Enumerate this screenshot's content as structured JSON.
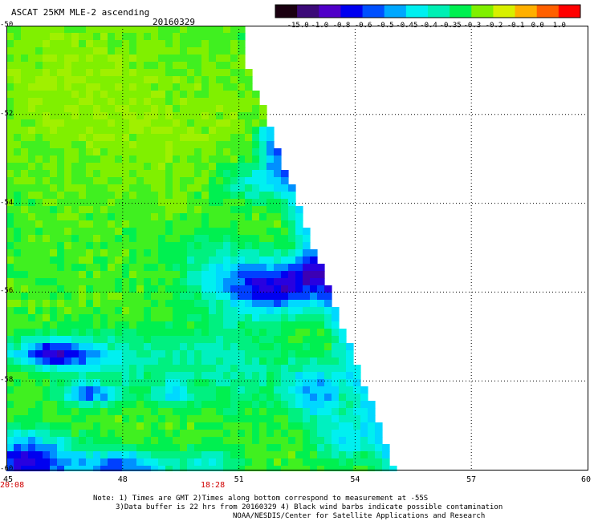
{
  "header": {
    "title": "ASCAT 25KM MLE-2 ascending",
    "date": "20160329"
  },
  "colorbar": {
    "labels": [
      "-15.0",
      "-1.0",
      "-0.8",
      "-0.6",
      "-0.5",
      "-0.45",
      "-0.4",
      "-0.35",
      "-0.3",
      "-0.2",
      "-0.1",
      "0.0",
      "1.0"
    ],
    "colors": [
      "#1a0010",
      "#3c0a78",
      "#5000c8",
      "#0000f0",
      "#0050ff",
      "#00a8ff",
      "#00f0f0",
      "#00f0b4",
      "#00f050",
      "#80f000",
      "#d8f000",
      "#ffb000",
      "#ff6000",
      "#ff0000"
    ]
  },
  "axes": {
    "x_ticks": [
      "45",
      "48",
      "51",
      "54",
      "57",
      "60"
    ],
    "y_ticks": [
      "-50",
      "-52",
      "-54",
      "-56",
      "-58",
      "-60"
    ]
  },
  "times": {
    "left": "20:08",
    "middle": "18:28"
  },
  "notes": {
    "line1": "Note: 1) Times are GMT 2)Times along bottom correspond to measurement at -55S",
    "line2": "3)Data buffer is 22 hrs from 20160329 4) Black wind barbs indicate possible contamination",
    "line3": "NOAA/NESDIS/Center for Satellite Applications and Research"
  }
}
